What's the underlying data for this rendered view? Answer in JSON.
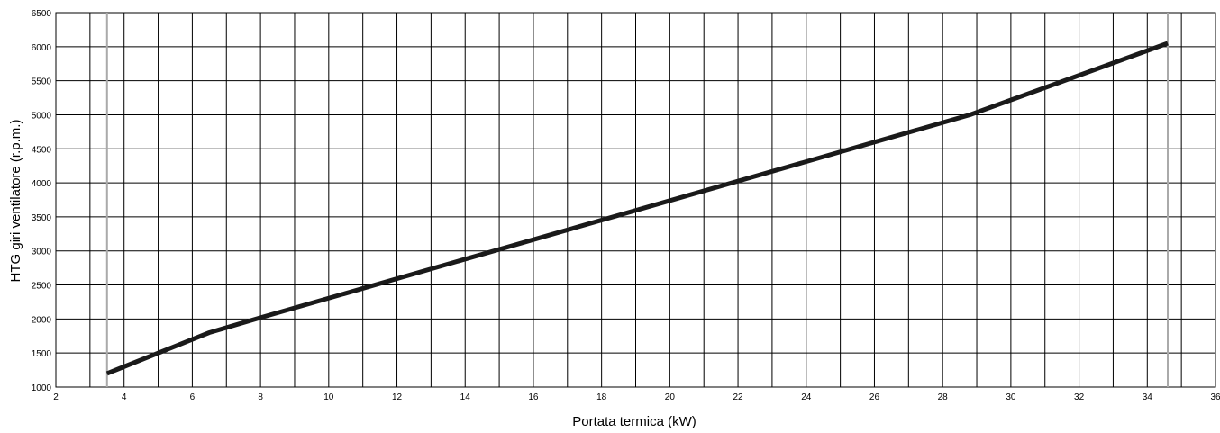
{
  "chart_data": {
    "type": "line",
    "title": "",
    "xlabel": "Portata termica (kW)",
    "ylabel": "HTG giri ventilatore (r.p.m.)",
    "xlim": [
      2,
      36
    ],
    "ylim": [
      1000,
      6500
    ],
    "xticks": [
      2,
      4,
      6,
      8,
      10,
      12,
      14,
      16,
      18,
      20,
      22,
      24,
      26,
      28,
      30,
      32,
      34,
      36
    ],
    "yticks": [
      1000,
      1500,
      2000,
      2500,
      3000,
      3500,
      4000,
      4500,
      5000,
      5500,
      6000,
      6500
    ],
    "grid": true,
    "reference_lines_x": [
      3.5,
      34.6
    ],
    "series": [
      {
        "x": [
          3.5,
          6.5,
          8,
          28.8,
          34.6
        ],
        "y": [
          1200,
          1800,
          2020,
          5000,
          6050
        ]
      }
    ],
    "colors": {
      "line": "#1a1a1a",
      "grid": "#000000",
      "reference": "#aaaaaa"
    }
  }
}
